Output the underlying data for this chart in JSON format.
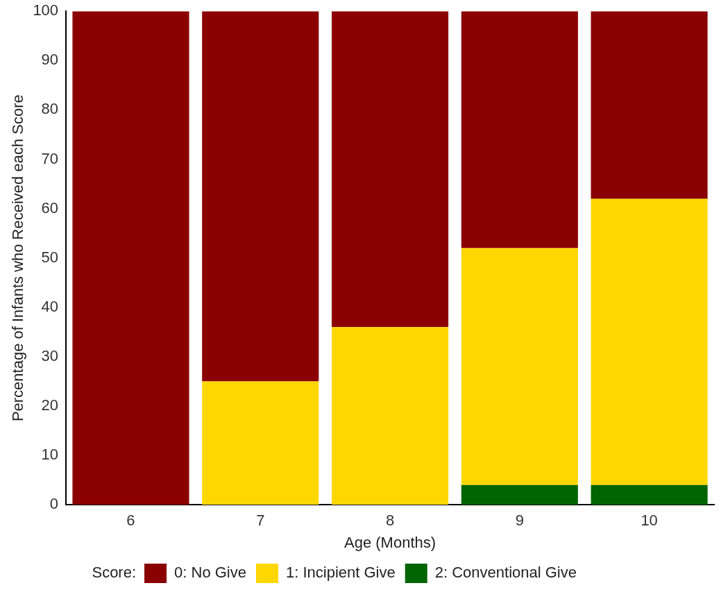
{
  "chart_data": {
    "type": "bar",
    "stacked": true,
    "xlabel": "Age (Months)",
    "ylabel": "Percentage of Infants who Received each Score",
    "legend_title": "Score:",
    "legend": "bottom",
    "grid": false,
    "categories": [
      "6",
      "7",
      "8",
      "9",
      "10"
    ],
    "series": [
      {
        "name": "2: Conventional Give",
        "color": "#006400",
        "values": [
          0,
          0,
          0,
          4,
          4
        ]
      },
      {
        "name": "1: Incipient Give",
        "color": "#ffd700",
        "values": [
          0,
          25,
          36,
          48,
          58
        ]
      },
      {
        "name": "0: No Give",
        "color": "#8b0000",
        "values": [
          100,
          75,
          64,
          48,
          38
        ]
      }
    ],
    "ylim": [
      0,
      100
    ],
    "yticks": [
      0,
      10,
      20,
      30,
      40,
      50,
      60,
      70,
      80,
      90,
      100
    ]
  }
}
